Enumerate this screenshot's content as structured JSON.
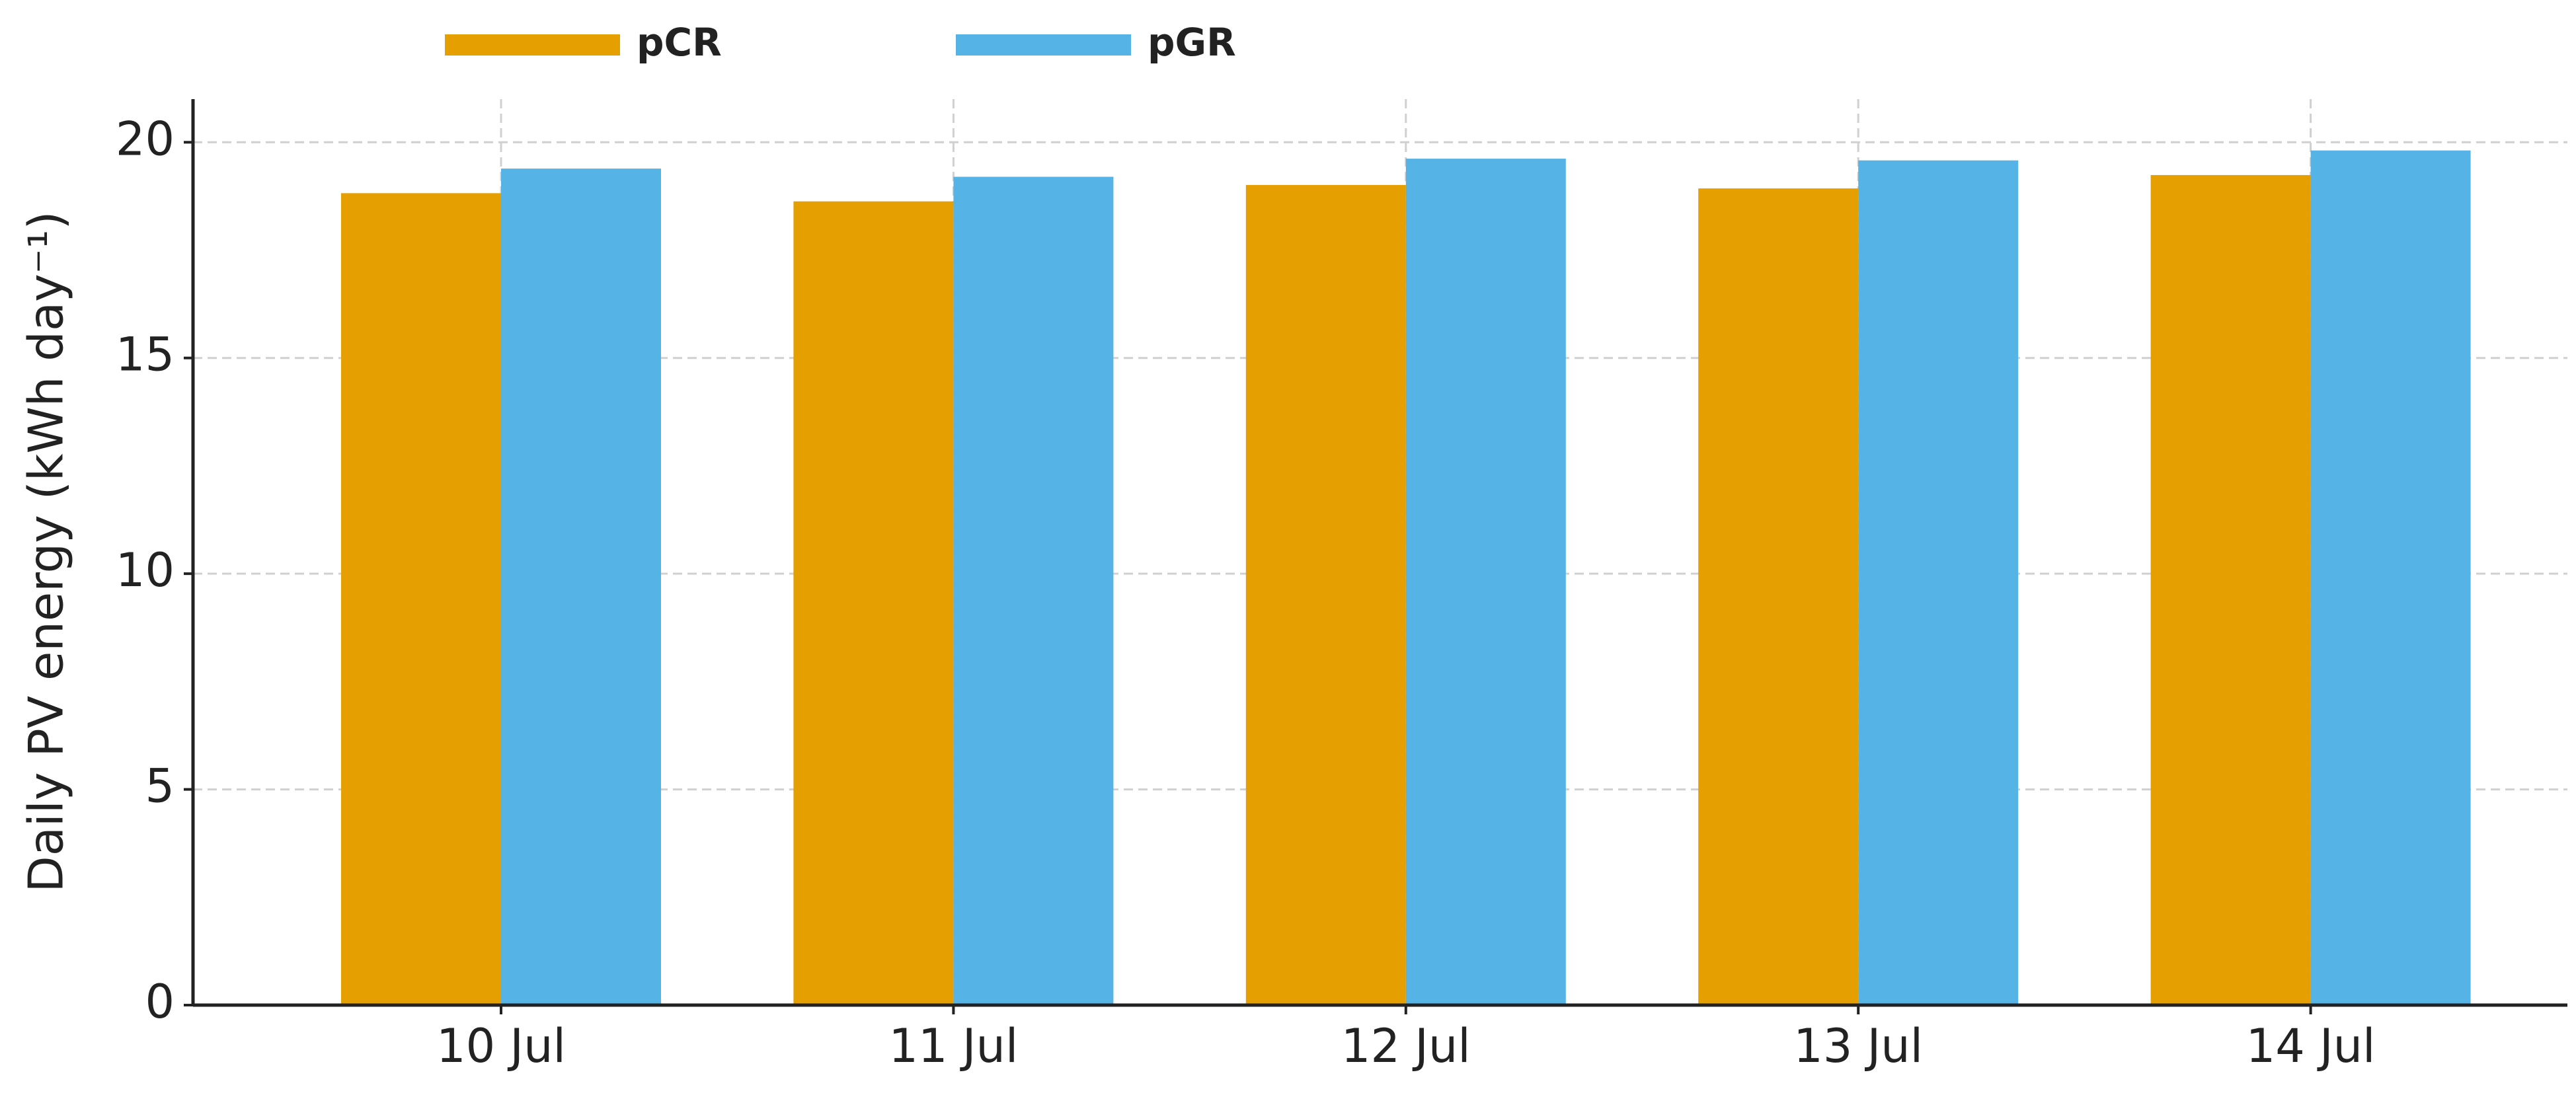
{
  "chart_data": {
    "type": "bar",
    "y_label": "Daily PV energy (kWh day⁻¹)",
    "categories": [
      "10 Jul",
      "11 Jul",
      "12 Jul",
      "13 Jul",
      "14 Jul"
    ],
    "series": [
      {
        "name": "pCR",
        "color": "#e5a000",
        "values": [
          18.82,
          18.63,
          19.01,
          18.93,
          19.24
        ]
      },
      {
        "name": "pGR",
        "color": "#56b3e6",
        "values": [
          19.39,
          19.2,
          19.62,
          19.58,
          19.81
        ]
      }
    ],
    "ylim": [
      0,
      21
    ],
    "yticks": [
      0,
      5,
      10,
      15,
      20
    ],
    "grid": true
  }
}
